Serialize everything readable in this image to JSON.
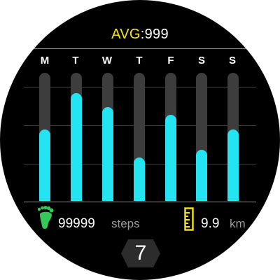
{
  "header": {
    "avg_label": "AVG",
    "avg_sep": ":",
    "avg_value": "999"
  },
  "chart_data": {
    "type": "bar",
    "categories": [
      "M",
      "T",
      "W",
      "T",
      "F",
      "S",
      "S"
    ],
    "values": [
      0.56,
      0.84,
      0.73,
      0.34,
      0.67,
      0.4,
      0.56
    ],
    "value_scale": "fraction of daily track filled",
    "colors": {
      "fill": "#25e4f2",
      "track": "#3d3d3d"
    },
    "grid": true
  },
  "stats": {
    "steps_value": "99999",
    "steps_unit": "steps",
    "steps_icon": "footprint-icon",
    "distance_value": "9.9",
    "distance_unit": "km",
    "distance_icon": "ruler-icon"
  },
  "footer": {
    "page_number": "7",
    "badge_icon": "hexagon-icon"
  },
  "colors": {
    "accent": "#25e4f2",
    "avg_label": "#f4e51c",
    "steps_icon": "#35c759",
    "ruler_icon": "#f4e51c",
    "unit_text": "#9a9a9a",
    "background": "#000000"
  }
}
